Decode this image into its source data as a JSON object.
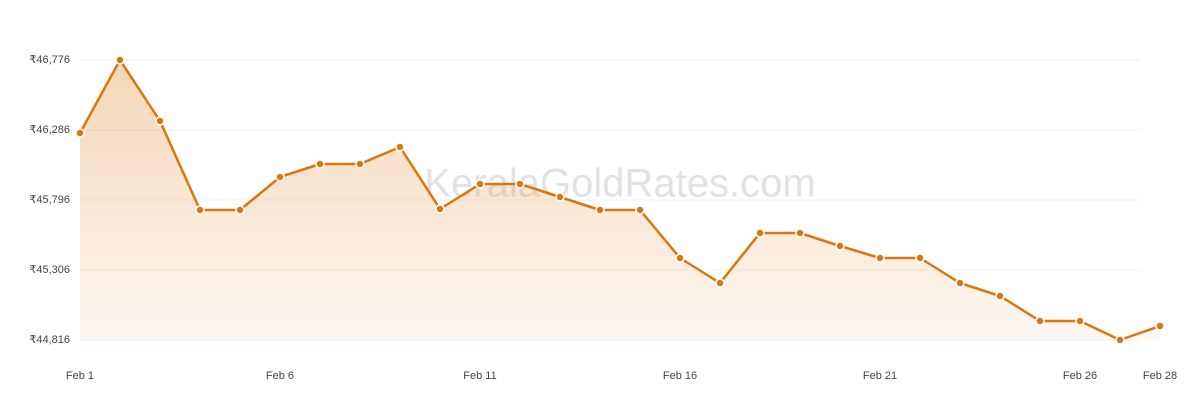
{
  "chart_data": {
    "type": "line",
    "watermark": "KeralaGoldRates.com",
    "categories": [
      "Feb 1",
      null,
      null,
      null,
      null,
      "Feb 6",
      null,
      null,
      null,
      null,
      "Feb 11",
      null,
      null,
      null,
      null,
      "Feb 16",
      null,
      null,
      null,
      null,
      "Feb 21",
      null,
      null,
      null,
      null,
      "Feb 26",
      null,
      "Feb 28"
    ],
    "series": [
      {
        "color": "#d9770e",
        "values": [
          46265,
          46776,
          46349,
          45726,
          45726,
          45957,
          46048,
          46048,
          46167,
          45733,
          45908,
          45908,
          45817,
          45726,
          45726,
          45390,
          45215,
          45565,
          45565,
          45474,
          45390,
          45390,
          45215,
          45124,
          44949,
          44949,
          44816,
          44914
        ]
      }
    ],
    "ylim": [
      44816,
      46776
    ],
    "yticks": [
      {
        "value": 44816,
        "label": "₹44,816"
      },
      {
        "value": 45306,
        "label": "₹45,306"
      },
      {
        "value": 45796,
        "label": "₹45,796"
      },
      {
        "value": 46286,
        "label": "₹46,286"
      },
      {
        "value": 46776,
        "label": "₹46,776"
      }
    ],
    "grid": true
  }
}
